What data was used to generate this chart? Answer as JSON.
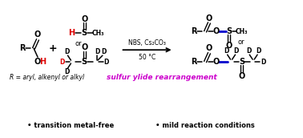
{
  "bg_color": "#ffffff",
  "text_color": "#000000",
  "red_color": "#dd0000",
  "blue_color": "#0000cc",
  "magenta_color": "#cc00cc",
  "bottom_text1": "• transition metal-free",
  "bottom_text2": "• mild reaction conditions",
  "r_group_text": "R = aryl, alkenyl or alkyl",
  "sulfur_ylide_text": "sulfur ylide rearrangement",
  "reaction_conditions": "NBS, Cs₂CO₃",
  "temperature": "50 °C"
}
